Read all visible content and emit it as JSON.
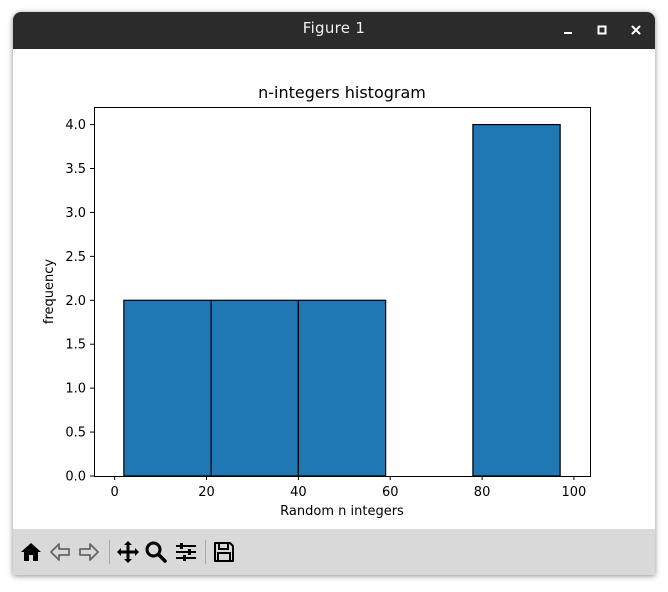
{
  "window": {
    "title": "Figure 1",
    "controls": [
      "minimize-icon",
      "maximize-icon",
      "close-icon"
    ]
  },
  "toolbar": {
    "items": [
      "home-icon",
      "back-icon",
      "forward-icon",
      "pan-icon",
      "zoom-icon",
      "configure-subplots-icon",
      "save-icon"
    ]
  },
  "colors": {
    "bar_fill": "#1f77b4",
    "bar_edge": "#000000",
    "titlebar": "#2b2b2b",
    "toolbar": "#d9d9d9"
  },
  "chart_data": {
    "type": "bar",
    "title": "n-integers histogram",
    "xlabel": "Random n integers",
    "ylabel": "frequency",
    "bin_edges": [
      2,
      21,
      40,
      59,
      78,
      97
    ],
    "values": [
      2,
      2,
      2,
      0,
      4
    ],
    "xlim": [
      -4.5,
      103.5
    ],
    "ylim": [
      0,
      4.2
    ],
    "xticks": [
      0,
      20,
      40,
      60,
      80,
      100
    ],
    "yticks": [
      0.0,
      0.5,
      1.0,
      1.5,
      2.0,
      2.5,
      3.0,
      3.5,
      4.0
    ],
    "ytick_labels": [
      "0.0",
      "0.5",
      "1.0",
      "1.5",
      "2.0",
      "2.5",
      "3.0",
      "3.5",
      "4.0"
    ],
    "grid": false,
    "legend": "none"
  }
}
